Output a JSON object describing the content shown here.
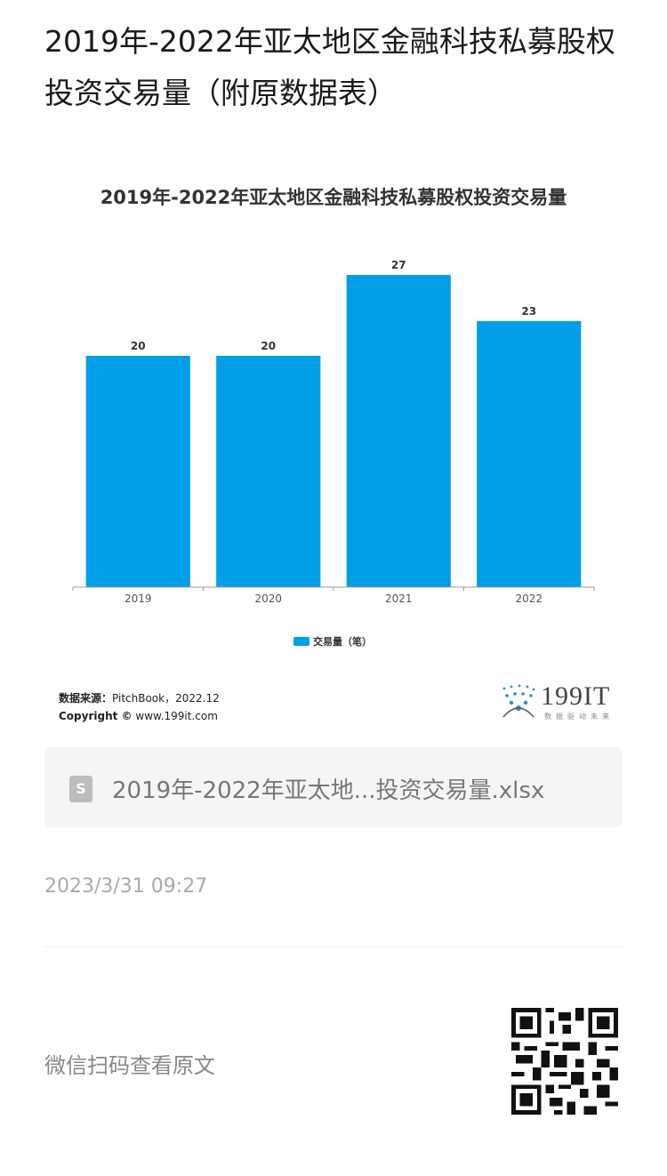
{
  "page": {
    "title": "2019年-2022年亚太地区金融科技私募股权投资交易量（附原数据表）",
    "file_name": "2019年-2022年亚太地...投资交易量.xlsx",
    "timestamp": "2023/3/31 09:27",
    "qr_hint": "微信扫码查看原文",
    "file_icon_letter": "S"
  },
  "source": {
    "label": "数据来源：",
    "value": "PitchBook，2022.12",
    "copyright_label": "Copyright ©",
    "copyright_site": "www.199it.com"
  },
  "logo": {
    "text": "199IT",
    "tagline": "数据驱动未来"
  },
  "chart_data": {
    "type": "bar",
    "title": "2019年-2022年亚太地区金融科技私募股权投资交易量",
    "categories": [
      "2019",
      "2020",
      "2021",
      "2022"
    ],
    "series": [
      {
        "name": "交易量（笔）",
        "values": [
          20,
          20,
          27,
          23
        ],
        "color": "#009fe8"
      }
    ],
    "ylim": [
      0,
      30
    ],
    "grid": false,
    "legend": "bottom"
  }
}
